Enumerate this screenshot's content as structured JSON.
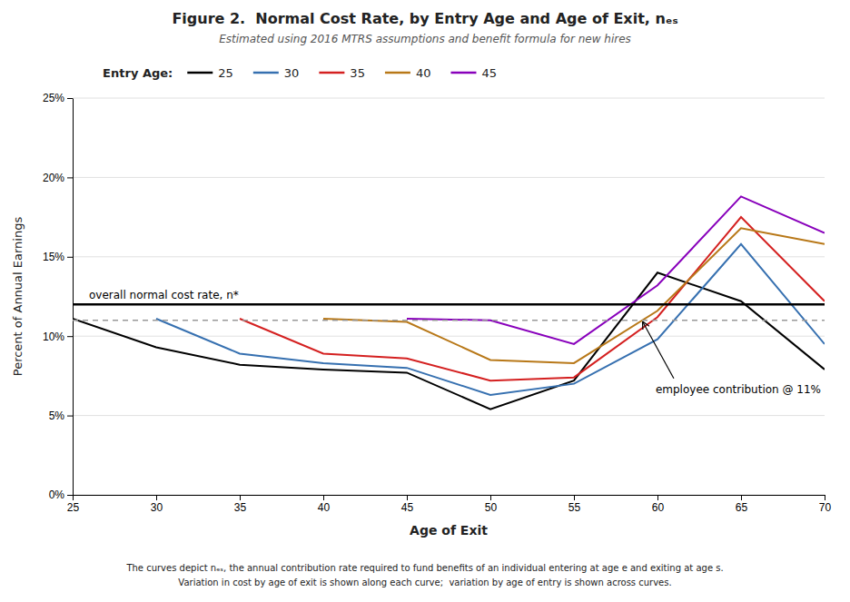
{
  "chart_data": {
    "type": "line",
    "title": "Figure 2.  Normal Cost Rate, by Entry Age and Age of Exit, nₑₛ",
    "subtitle": "Estimated using 2016 MTRS assumptions and benefit formula for new hires",
    "x_label": "Age of Exit",
    "y_label": "Percent of Annual Earnings",
    "legend_title": "Entry Age:",
    "footnotes": [
      "The curves depict nₑₛ, the annual contribution rate required to fund benefits of an individual entering at age e and exiting at age s.",
      "Variation in cost by age of exit is shown along each curve;  variation by age of entry is shown across curves."
    ],
    "series": [
      {
        "name": "25",
        "color": "#000000",
        "x": [
          25,
          30,
          35,
          40,
          45,
          50,
          55,
          60,
          65,
          70
        ],
        "values": [
          0.111,
          0.093,
          0.082,
          0.079,
          0.077,
          0.054,
          0.072,
          0.14,
          0.122,
          0.079
        ]
      },
      {
        "name": "30",
        "color": "#3670b0",
        "x": [
          30,
          35,
          40,
          45,
          50,
          55,
          60,
          65,
          70
        ],
        "values": [
          0.111,
          0.089,
          0.083,
          0.08,
          0.063,
          0.07,
          0.098,
          0.158,
          0.095
        ]
      },
      {
        "name": "35",
        "color": "#d42020",
        "x": [
          35,
          40,
          45,
          50,
          55,
          60,
          65,
          70
        ],
        "values": [
          0.111,
          0.089,
          0.086,
          0.072,
          0.074,
          0.112,
          0.175,
          0.122
        ]
      },
      {
        "name": "40",
        "color": "#b87818",
        "x": [
          40,
          45,
          50,
          55,
          60,
          65,
          70
        ],
        "values": [
          0.111,
          0.109,
          0.085,
          0.083,
          0.116,
          0.168,
          0.158
        ]
      },
      {
        "name": "45",
        "color": "#8800bb",
        "x": [
          45,
          50,
          55,
          60,
          65,
          70
        ],
        "values": [
          0.111,
          0.11,
          0.095,
          0.132,
          0.188,
          0.165
        ]
      }
    ],
    "reference_lines": [
      {
        "value": 0.12,
        "label": "overall normal cost rate, n*",
        "color": "#000000",
        "line_style": "solid"
      },
      {
        "value": 0.11,
        "label": "employee contribution @ 11%",
        "color": "#999999",
        "line_style": "dashed"
      }
    ],
    "xlim": [
      25,
      70
    ],
    "xticks": [
      25,
      30,
      35,
      40,
      45,
      50,
      55,
      60,
      65,
      70
    ],
    "ylim": [
      0.0,
      0.25
    ],
    "yticks": [
      {
        "value": 0.0,
        "label": "0%"
      },
      {
        "value": 0.05,
        "label": "5%"
      },
      {
        "value": 0.1,
        "label": "10%"
      },
      {
        "value": 0.15,
        "label": "15%"
      },
      {
        "value": 0.2,
        "label": "20%"
      },
      {
        "value": 0.25,
        "label": "25%"
      }
    ],
    "grid": true
  }
}
